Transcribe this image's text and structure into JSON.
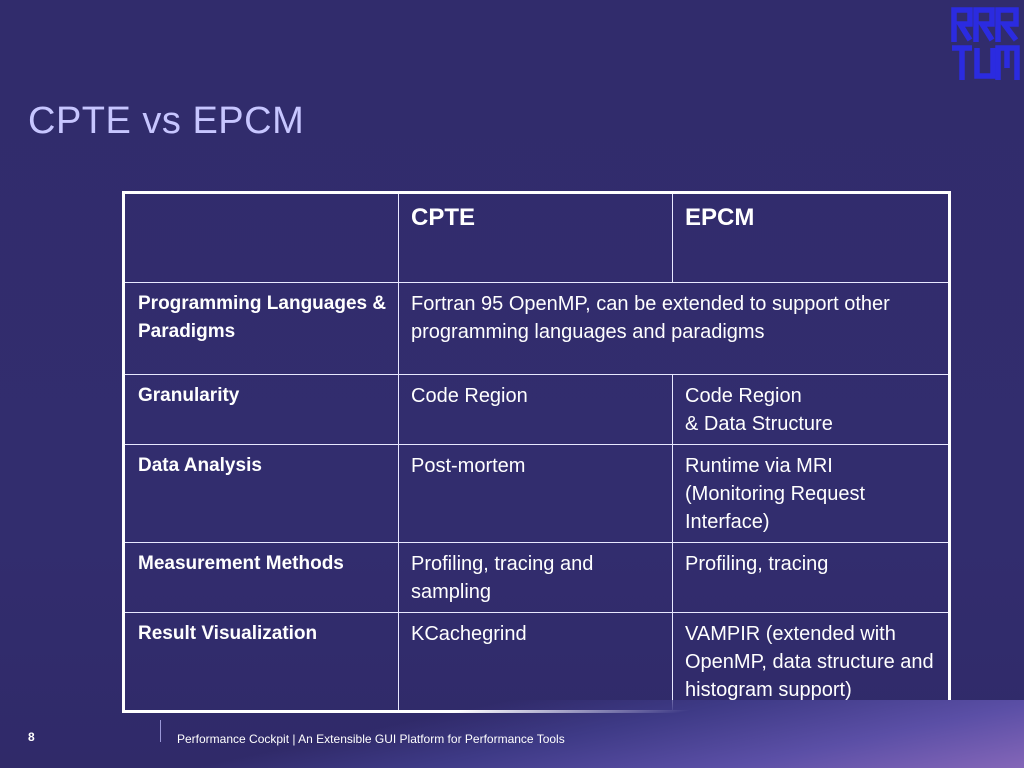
{
  "slide": {
    "title": "CPTE vs EPCM",
    "logo_name": "tum-logo"
  },
  "table": {
    "headers": [
      "",
      "CPTE",
      "EPCM"
    ],
    "rows": [
      {
        "label": "Programming Languages & Paradigms",
        "merged": "Fortran 95 OpenMP, can be extended to support other programming languages and paradigms"
      },
      {
        "label": "Granularity",
        "cpte": "Code Region",
        "epcm_lines": [
          "Code Region",
          "& Data Structure"
        ]
      },
      {
        "label": "Data Analysis",
        "cpte": "Post-mortem",
        "epcm": "Runtime via MRI (Monitoring Request Interface)"
      },
      {
        "label": "Measurement Methods",
        "cpte": "Profiling, tracing and sampling",
        "epcm": "Profiling, tracing"
      },
      {
        "label": "Result Visualization",
        "cpte": "KCachegrind",
        "epcm": "VAMPIR (extended with OpenMP, data structure and histogram support)"
      }
    ]
  },
  "footer": {
    "page_number": "8",
    "text": "Performance Cockpit  | An Extensible GUI Platform for Performance Tools"
  },
  "colors": {
    "background": "#312c6c",
    "title": "#c7c6ff",
    "text": "#ffffff"
  }
}
